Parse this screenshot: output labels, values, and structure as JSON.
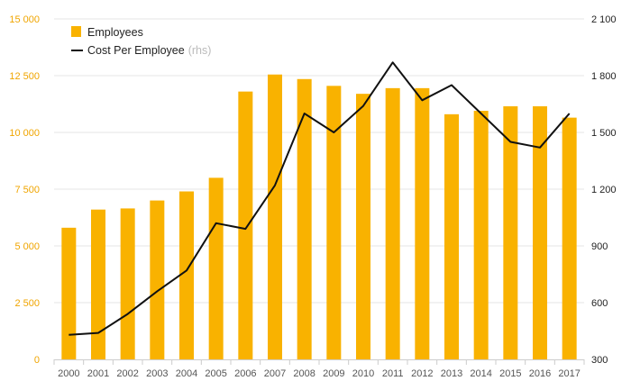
{
  "colors": {
    "bar": "#f9b200",
    "line": "#111111",
    "left_axis_text": "#f0a500",
    "grid": "#e6e6e6",
    "axis": "#cccccc"
  },
  "chart_data": {
    "type": "bar",
    "categories": [
      "2000",
      "2001",
      "2002",
      "2003",
      "2004",
      "2005",
      "2006",
      "2007",
      "2008",
      "2009",
      "2010",
      "2011",
      "2012",
      "2013",
      "2014",
      "2015",
      "2016",
      "2017"
    ],
    "series": [
      {
        "name": "Employees",
        "type": "bar",
        "axis": "left",
        "values": [
          5800,
          6600,
          6650,
          7000,
          7400,
          8000,
          11800,
          12550,
          12350,
          12050,
          11700,
          11950,
          11950,
          10800,
          10950,
          11150,
          11150,
          10650
        ]
      },
      {
        "name": "Cost Per Employee",
        "name_suffix": "(rhs)",
        "type": "line",
        "axis": "right",
        "values": [
          430,
          440,
          540,
          660,
          770,
          1020,
          990,
          1220,
          1600,
          1500,
          1640,
          1870,
          1670,
          1750,
          1600,
          1450,
          1420,
          1600
        ]
      }
    ],
    "y_left": {
      "ylim": [
        0,
        15000
      ],
      "ticks": [
        0,
        2500,
        5000,
        7500,
        10000,
        12500,
        15000
      ],
      "tick_labels": [
        "0",
        "2 500",
        "5 000",
        "7 500",
        "10 000",
        "12 500",
        "15 000"
      ]
    },
    "y_right": {
      "ylim": [
        300,
        2100
      ],
      "ticks": [
        300,
        600,
        900,
        1200,
        1500,
        1800,
        2100
      ],
      "tick_labels": [
        "300",
        "600",
        "900",
        "1 200",
        "1 500",
        "1 800",
        "2 100"
      ]
    },
    "grid": true,
    "legend": "top-left",
    "title": "",
    "xlabel": "",
    "ylabel": ""
  }
}
